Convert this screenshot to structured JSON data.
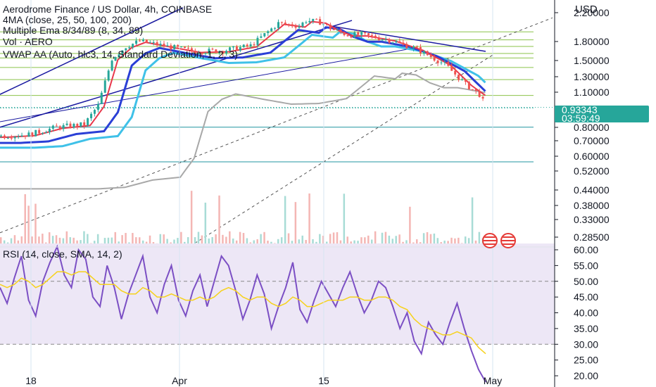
{
  "header": {
    "symbol_line": "Aerodrome Finance / US Dollar, 4h, COINBASE",
    "indicator_1": "4MA (close, 25, 50, 100, 200)",
    "indicator_2": "Multiple Ema 8/34/89 (8, 34, 89)",
    "indicator_3": "Vol · AERO",
    "indicator_4": "VWAP AA (Auto, hlc3, 14, Standard Deviation, 1, 2, 3)",
    "rsi_legend": "RSI (14, close, SMA, 14, 2)"
  },
  "price_axis": {
    "currency": "USD",
    "last_price": "0.93343",
    "countdown": "03:59:49"
  },
  "colors": {
    "up": "#26a69a",
    "down": "#ef5350",
    "ema8": "#e8374b",
    "ema34": "#2a3fd6",
    "ema89": "#3fc1e8",
    "ma200": "#a8a8a8",
    "rsi": "#7b4fc4",
    "rsi_ma": "#f6d21c",
    "rsi_band": "#ede7f6",
    "level": "#8bc34a",
    "channel": "#1a1aa0"
  },
  "chart_data": [
    {
      "type": "candlestick",
      "title": "Aerodrome Finance / US Dollar, 4h, COINBASE",
      "y_scale": "log",
      "ylim": [
        0.26,
        2.3
      ],
      "y_ticks": [
        "2.20000",
        "1.80000",
        "1.50000",
        "1.30000",
        "1.10000",
        "0.93343",
        "0.80000",
        "0.70000",
        "0.60000",
        "0.52000",
        "0.44000",
        "0.38000",
        "0.33000",
        "0.28500"
      ],
      "x_ticks": [
        "18",
        "Apr",
        "15",
        "May"
      ],
      "close_path_approx": {
        "x_day": [
          0,
          4,
          8,
          12,
          14,
          16,
          18,
          20,
          24,
          28,
          32,
          36,
          40,
          43,
          44,
          46,
          48,
          50,
          52,
          56,
          60,
          64,
          67,
          69,
          70
        ],
        "close": [
          0.72,
          0.73,
          0.78,
          0.8,
          0.95,
          1.45,
          1.62,
          1.7,
          1.62,
          1.55,
          1.56,
          1.63,
          2.0,
          1.95,
          2.05,
          2.02,
          1.88,
          1.8,
          1.8,
          1.72,
          1.58,
          1.38,
          1.15,
          1.05,
          0.93
        ]
      },
      "horizontal_levels": [
        1.85,
        1.72,
        1.62,
        1.52,
        1.46,
        1.34,
        1.2,
        1.04,
        0.93,
        0.78,
        0.57
      ],
      "last_price": 0.93343
    },
    {
      "type": "line",
      "title": "RSI (14, close, SMA, 14, 2)",
      "ylim": [
        18,
        62
      ],
      "y_ticks": [
        "60.00",
        "55.00",
        "50.00",
        "45.00",
        "40.00",
        "35.00",
        "30.00",
        "25.00",
        "20.00"
      ],
      "bands": [
        30,
        50
      ],
      "series": [
        {
          "name": "RSI",
          "values": [
            48,
            43,
            51,
            58,
            44,
            39,
            50,
            56,
            61,
            52,
            48,
            60,
            57,
            45,
            42,
            55,
            48,
            38,
            46,
            52,
            58,
            45,
            40,
            49,
            55,
            44,
            39,
            47,
            52,
            42,
            50,
            58,
            55,
            47,
            38,
            44,
            52,
            46,
            35,
            42,
            48,
            56,
            41,
            37,
            44,
            50,
            46,
            42,
            48,
            53,
            46,
            40,
            44,
            50,
            48,
            42,
            35,
            40,
            31,
            27,
            37,
            33,
            30,
            37,
            43,
            35,
            28,
            22,
            18
          ]
        },
        {
          "name": "RSI-based MA",
          "values": [
            49,
            48,
            49,
            51,
            50,
            48,
            49,
            51,
            53,
            53,
            52,
            53,
            53,
            51,
            49,
            49,
            49,
            47,
            46,
            46,
            48,
            47,
            45,
            45,
            46,
            45,
            44,
            44,
            45,
            44,
            45,
            47,
            48,
            47,
            45,
            44,
            45,
            45,
            43,
            42,
            43,
            45,
            44,
            42,
            42,
            43,
            44,
            44,
            44,
            45,
            45,
            44,
            44,
            45,
            45,
            44,
            42,
            41,
            38,
            36,
            35,
            34,
            33,
            33,
            34,
            33,
            32,
            29,
            27
          ]
        }
      ]
    }
  ]
}
